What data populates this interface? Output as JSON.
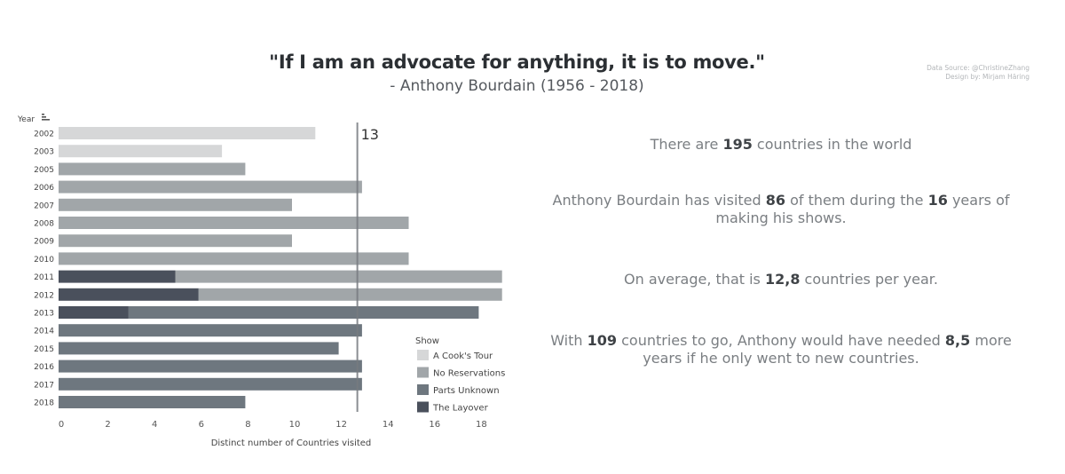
{
  "header": {
    "title": "\"If I am an advocate for anything, it is to move.\"",
    "subtitle": "- Anthony Bourdain (1956 - 2018)",
    "source": "Data Source: @ChristineZhang",
    "design": "Design by: Mirjam Häring"
  },
  "chart_data": {
    "type": "bar",
    "orientation": "horizontal",
    "stacked": true,
    "categories": [
      "2002",
      "2003",
      "2005",
      "2006",
      "2007",
      "2008",
      "2009",
      "2010",
      "2011",
      "2012",
      "2013",
      "2014",
      "2015",
      "2016",
      "2017",
      "2018"
    ],
    "y_header": "Year",
    "xlabel": "Distinct number of Countries visited",
    "xlim": [
      0,
      19
    ],
    "xticks": [
      0,
      2,
      4,
      6,
      8,
      10,
      12,
      14,
      16,
      18
    ],
    "reference_line": {
      "value": 12.8,
      "label": "13"
    },
    "legend": {
      "title": "Show",
      "position": "bottom-right"
    },
    "series": [
      {
        "name": "A Cook's Tour",
        "color": "#d6d7d8",
        "values": [
          11,
          7,
          0,
          0,
          0,
          0,
          0,
          0,
          0,
          0,
          0,
          0,
          0,
          0,
          0,
          0
        ]
      },
      {
        "name": "No Reservations",
        "color": "#a1a6a9",
        "values": [
          0,
          0,
          8,
          13,
          10,
          15,
          10,
          15,
          14,
          13,
          0,
          0,
          0,
          0,
          0,
          0
        ]
      },
      {
        "name": "Parts Unknown",
        "color": "#6e777f",
        "values": [
          0,
          0,
          0,
          0,
          0,
          0,
          0,
          0,
          0,
          0,
          15,
          13,
          12,
          13,
          13,
          8
        ]
      },
      {
        "name": "The Layover",
        "color": "#4a505c",
        "values": [
          0,
          0,
          0,
          0,
          0,
          0,
          0,
          0,
          5,
          6,
          3,
          0,
          0,
          0,
          0,
          0
        ]
      }
    ],
    "stack_order": [
      "The Layover",
      "A Cook's Tour",
      "No Reservations",
      "Parts Unknown"
    ]
  },
  "stats": {
    "line1": {
      "pre": "There are ",
      "num1": "195",
      "post": " countries in the world"
    },
    "line2": {
      "pre": "Anthony Bourdain has visited ",
      "num1": "86",
      "mid": " of them during the ",
      "num2": "16",
      "post": " years of making his shows."
    },
    "line3": {
      "pre": "On average, that is ",
      "num1": "12,8",
      "post": " countries per year."
    },
    "line4": {
      "pre": "With ",
      "num1": "109",
      "mid": " countries to go, Anthony would have needed ",
      "num2": "8,5",
      "post": " more years if he only went to new countries."
    }
  }
}
